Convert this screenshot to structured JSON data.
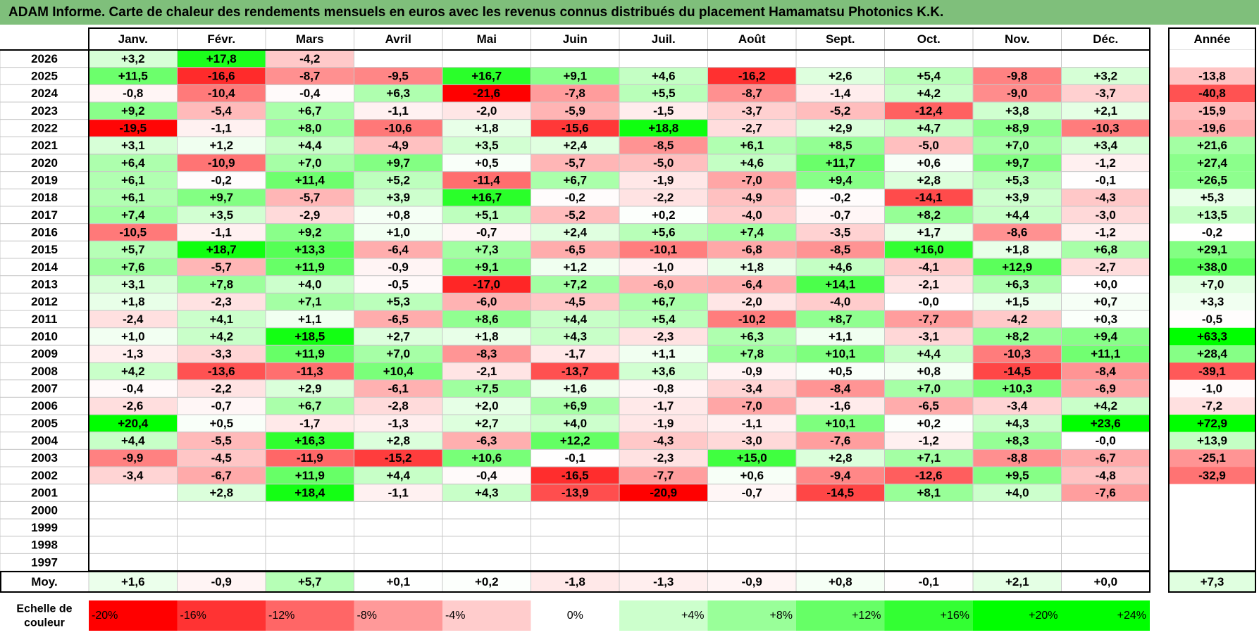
{
  "title": "ADAM Informe. Carte de chaleur des rendements mensuels en euros avec les revenus connus distribués du placement Hamamatsu Photonics K.K.",
  "chart_data": {
    "type": "heatmap",
    "months": [
      "Janv.",
      "Févr.",
      "Mars",
      "Avril",
      "Mai",
      "Juin",
      "Juil.",
      "Août",
      "Sept.",
      "Oct.",
      "Nov.",
      "Déc."
    ],
    "year_header": "Année",
    "rows": [
      {
        "year": "2026",
        "values": [
          "+3,2",
          "+17,8",
          "-4,2",
          "",
          "",
          "",
          "",
          "",
          "",
          "",
          "",
          ""
        ],
        "annual": ""
      },
      {
        "year": "2025",
        "values": [
          "+11,5",
          "-16,6",
          "-8,7",
          "-9,5",
          "+16,7",
          "+9,1",
          "+4,6",
          "-16,2",
          "+2,6",
          "+5,4",
          "-9,8",
          "+3,2"
        ],
        "annual": "-13,8"
      },
      {
        "year": "2024",
        "values": [
          "-0,8",
          "-10,4",
          "-0,4",
          "+6,3",
          "-21,6",
          "-7,8",
          "+5,5",
          "-8,7",
          "-1,4",
          "+4,2",
          "-9,0",
          "-3,7"
        ],
        "annual": "-40,8"
      },
      {
        "year": "2023",
        "values": [
          "+9,2",
          "-5,4",
          "+6,7",
          "-1,1",
          "-2,0",
          "-5,9",
          "-1,5",
          "-3,7",
          "-5,2",
          "-12,4",
          "+3,8",
          "+2,1"
        ],
        "annual": "-15,9"
      },
      {
        "year": "2022",
        "values": [
          "-19,5",
          "-1,1",
          "+8,0",
          "-10,6",
          "+1,8",
          "-15,6",
          "+18,8",
          "-2,7",
          "+2,9",
          "+4,7",
          "+8,9",
          "-10,3"
        ],
        "annual": "-19,6"
      },
      {
        "year": "2021",
        "values": [
          "+3,1",
          "+1,2",
          "+4,4",
          "-4,9",
          "+3,5",
          "+2,4",
          "-8,5",
          "+6,1",
          "+8,5",
          "-5,0",
          "+7,0",
          "+3,4"
        ],
        "annual": "+21,6"
      },
      {
        "year": "2020",
        "values": [
          "+6,4",
          "-10,9",
          "+7,0",
          "+9,7",
          "+0,5",
          "-5,7",
          "-5,0",
          "+4,6",
          "+11,7",
          "+0,6",
          "+9,7",
          "-1,2"
        ],
        "annual": "+27,4"
      },
      {
        "year": "2019",
        "values": [
          "+6,1",
          "-0,2",
          "+11,4",
          "+5,2",
          "-11,4",
          "+6,7",
          "-1,9",
          "-7,0",
          "+9,4",
          "+2,8",
          "+5,3",
          "-0,1"
        ],
        "annual": "+26,5"
      },
      {
        "year": "2018",
        "values": [
          "+6,1",
          "+9,7",
          "-5,7",
          "+3,9",
          "+16,7",
          "-0,2",
          "-2,2",
          "-4,9",
          "-0,2",
          "-14,1",
          "+3,9",
          "-4,3"
        ],
        "annual": "+5,3"
      },
      {
        "year": "2017",
        "values": [
          "+7,4",
          "+3,5",
          "-2,9",
          "+0,8",
          "+5,1",
          "-5,2",
          "+0,2",
          "-4,0",
          "-0,7",
          "+8,2",
          "+4,4",
          "-3,0"
        ],
        "annual": "+13,5"
      },
      {
        "year": "2016",
        "values": [
          "-10,5",
          "-1,1",
          "+9,2",
          "+1,0",
          "-0,7",
          "+2,4",
          "+5,6",
          "+7,4",
          "-3,5",
          "+1,7",
          "-8,6",
          "-1,2"
        ],
        "annual": "-0,2"
      },
      {
        "year": "2015",
        "values": [
          "+5,7",
          "+18,7",
          "+13,3",
          "-6,4",
          "+7,3",
          "-6,5",
          "-10,1",
          "-6,8",
          "-8,5",
          "+16,0",
          "+1,8",
          "+6,8"
        ],
        "annual": "+29,1"
      },
      {
        "year": "2014",
        "values": [
          "+7,6",
          "-5,7",
          "+11,9",
          "-0,9",
          "+9,1",
          "+1,2",
          "-1,0",
          "+1,8",
          "+4,6",
          "-4,1",
          "+12,9",
          "-2,7"
        ],
        "annual": "+38,0"
      },
      {
        "year": "2013",
        "values": [
          "+3,1",
          "+7,8",
          "+4,0",
          "-0,5",
          "-17,0",
          "+7,2",
          "-6,0",
          "-6,4",
          "+14,1",
          "-2,1",
          "+6,3",
          "+0,0"
        ],
        "annual": "+7,0"
      },
      {
        "year": "2012",
        "values": [
          "+1,8",
          "-2,3",
          "+7,1",
          "+5,3",
          "-6,0",
          "-4,5",
          "+6,7",
          "-2,0",
          "-4,0",
          "-0,0",
          "+1,5",
          "+0,7"
        ],
        "annual": "+3,3"
      },
      {
        "year": "2011",
        "values": [
          "-2,4",
          "+4,1",
          "+1,1",
          "-6,5",
          "+8,6",
          "+4,4",
          "+5,4",
          "-10,2",
          "+8,7",
          "-7,7",
          "-4,2",
          "+0,3"
        ],
        "annual": "-0,5"
      },
      {
        "year": "2010",
        "values": [
          "+1,0",
          "+4,2",
          "+18,5",
          "+2,7",
          "+1,8",
          "+4,3",
          "-2,3",
          "+6,3",
          "+1,1",
          "-3,1",
          "+8,2",
          "+9,4"
        ],
        "annual": "+63,3"
      },
      {
        "year": "2009",
        "values": [
          "-1,3",
          "-3,3",
          "+11,9",
          "+7,0",
          "-8,3",
          "-1,7",
          "+1,1",
          "+7,8",
          "+10,1",
          "+4,4",
          "-10,3",
          "+11,1"
        ],
        "annual": "+28,4"
      },
      {
        "year": "2008",
        "values": [
          "+4,2",
          "-13,6",
          "-11,3",
          "+10,4",
          "-2,1",
          "-13,7",
          "+3,6",
          "-0,9",
          "+0,5",
          "+0,8",
          "-14,5",
          "-8,4"
        ],
        "annual": "-39,1"
      },
      {
        "year": "2007",
        "values": [
          "-0,4",
          "-2,2",
          "+2,9",
          "-6,1",
          "+7,5",
          "+1,6",
          "-0,8",
          "-3,4",
          "-8,4",
          "+7,0",
          "+10,3",
          "-6,9"
        ],
        "annual": "-1,0"
      },
      {
        "year": "2006",
        "values": [
          "-2,6",
          "-0,7",
          "+6,7",
          "-2,8",
          "+2,0",
          "+6,9",
          "-1,7",
          "-7,0",
          "-1,6",
          "-6,5",
          "-3,4",
          "+4,2"
        ],
        "annual": "-7,2"
      },
      {
        "year": "2005",
        "values": [
          "+20,4",
          "+0,5",
          "-1,7",
          "-1,3",
          "+2,7",
          "+4,0",
          "-1,9",
          "-1,1",
          "+10,1",
          "+0,2",
          "+4,3",
          "+23,6"
        ],
        "annual": "+72,9"
      },
      {
        "year": "2004",
        "values": [
          "+4,4",
          "-5,5",
          "+16,3",
          "+2,8",
          "-6,3",
          "+12,2",
          "-4,3",
          "-3,0",
          "-7,6",
          "-1,2",
          "+8,3",
          "-0,0"
        ],
        "annual": "+13,9"
      },
      {
        "year": "2003",
        "values": [
          "-9,9",
          "-4,5",
          "-11,9",
          "-15,2",
          "+10,6",
          "-0,1",
          "-2,3",
          "+15,0",
          "+2,8",
          "+7,1",
          "-8,8",
          "-6,7"
        ],
        "annual": "-25,1"
      },
      {
        "year": "2002",
        "values": [
          "-3,4",
          "-6,7",
          "+11,9",
          "+4,4",
          "-0,4",
          "-16,5",
          "-7,7",
          "+0,6",
          "-9,4",
          "-12,6",
          "+9,5",
          "-4,8"
        ],
        "annual": "-32,9"
      },
      {
        "year": "2001",
        "values": [
          "",
          "+2,8",
          "+18,4",
          "-1,1",
          "+4,3",
          "-13,9",
          "-20,9",
          "-0,7",
          "-14,5",
          "+8,1",
          "+4,0",
          "-7,6"
        ],
        "annual": ""
      },
      {
        "year": "2000",
        "values": [
          "",
          "",
          "",
          "",
          "",
          "",
          "",
          "",
          "",
          "",
          "",
          ""
        ],
        "annual": ""
      },
      {
        "year": "1999",
        "values": [
          "",
          "",
          "",
          "",
          "",
          "",
          "",
          "",
          "",
          "",
          "",
          ""
        ],
        "annual": ""
      },
      {
        "year": "1998",
        "values": [
          "",
          "",
          "",
          "",
          "",
          "",
          "",
          "",
          "",
          "",
          "",
          ""
        ],
        "annual": ""
      },
      {
        "year": "1997",
        "values": [
          "",
          "",
          "",
          "",
          "",
          "",
          "",
          "",
          "",
          "",
          "",
          ""
        ],
        "annual": ""
      }
    ],
    "average": {
      "label": "Moy.",
      "values": [
        "+1,6",
        "-0,9",
        "+5,7",
        "+0,1",
        "+0,2",
        "-1,8",
        "-1,3",
        "-0,9",
        "+0,8",
        "-0,1",
        "+2,1",
        "+0,0"
      ],
      "annual": "+7,3"
    },
    "scale": {
      "label_line1": "Echelle de",
      "label_line2": "couleur",
      "stops": [
        "-20%",
        "-16%",
        "-12%",
        "-8%",
        "-4%",
        "0%",
        "+4%",
        "+8%",
        "+12%",
        "+16%",
        "+20%",
        "+24%"
      ],
      "stop_values": [
        -20,
        -16,
        -12,
        -8,
        -4,
        0,
        4,
        8,
        12,
        16,
        20,
        24
      ]
    },
    "colors": {
      "negative": "#ff0000",
      "positive": "#00ff00",
      "neutral": "#ffffff",
      "grid": "#c8c8c8",
      "border": "#000000"
    }
  }
}
